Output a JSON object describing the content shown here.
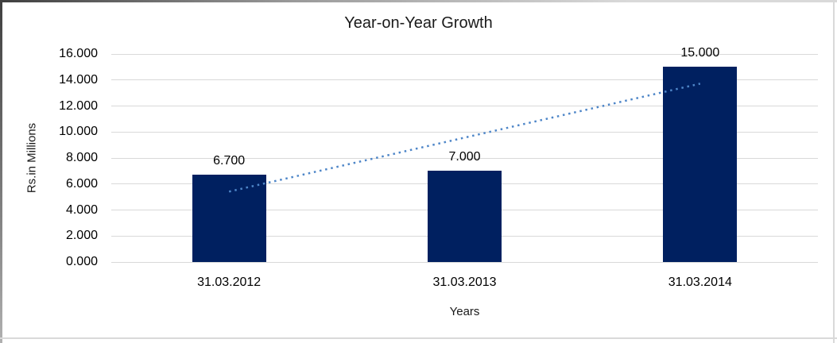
{
  "chart_data": {
    "type": "bar",
    "title": "Year-on-Year Growth",
    "xlabel": "Years",
    "ylabel": "Rs.in Millions",
    "categories": [
      "31.03.2012",
      "31.03.2013",
      "31.03.2014"
    ],
    "values": [
      6.7,
      7.0,
      15.0
    ],
    "data_labels": [
      "6.700",
      "7.000",
      "15.000"
    ],
    "y_ticks": [
      {
        "value": 16,
        "label": "16.000"
      },
      {
        "value": 14,
        "label": "14.000"
      },
      {
        "value": 12,
        "label": "12.000"
      },
      {
        "value": 10,
        "label": "10.000"
      },
      {
        "value": 8,
        "label": "8.000"
      },
      {
        "value": 6,
        "label": "6.000"
      },
      {
        "value": 4,
        "label": "4.000"
      },
      {
        "value": 2,
        "label": "2.000"
      },
      {
        "value": 0,
        "label": "0.000"
      }
    ],
    "ylim": [
      0,
      16
    ],
    "grid": true,
    "legend_position": "none",
    "colors": {
      "bar": "#002060",
      "trendline": "#4e86c8",
      "gridline": "#d9d9d9",
      "text": "#1a1a1a",
      "background": "#ffffff"
    },
    "trendline": {
      "type": "linear",
      "style": "dotted",
      "start_category_index": 0,
      "start_value": 5.417,
      "end_category_index": 2,
      "end_value": 13.717
    }
  }
}
